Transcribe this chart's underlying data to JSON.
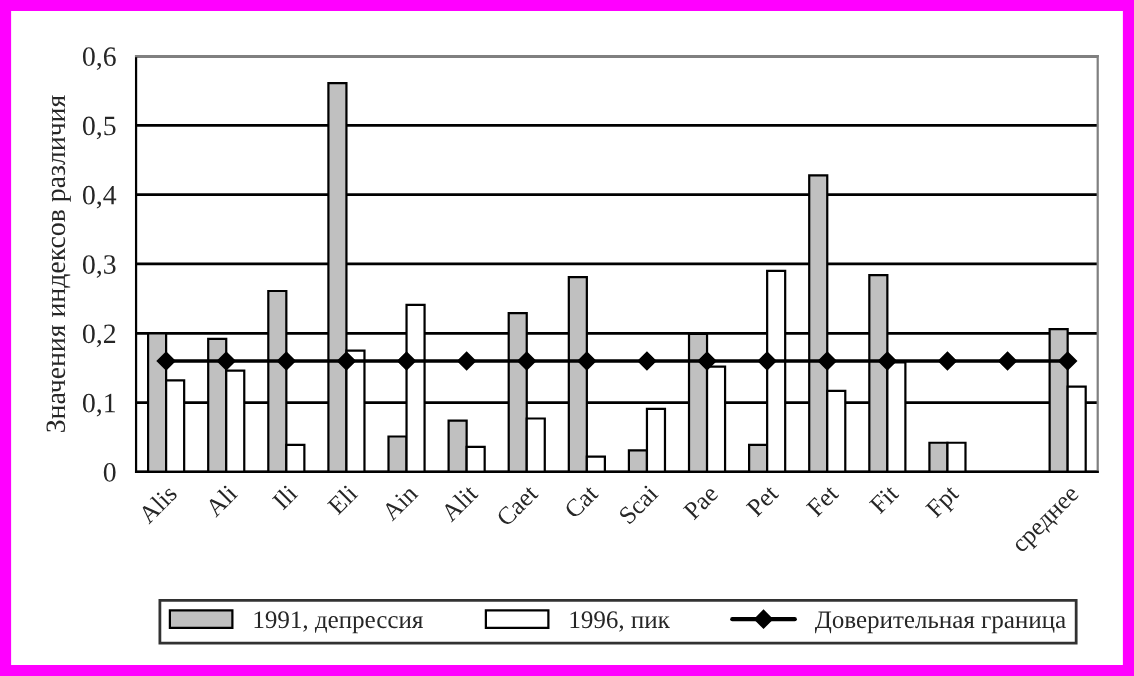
{
  "chart_data": {
    "type": "bar",
    "ylabel": "Значения индексов различия",
    "categories": [
      "Alis",
      "Ali",
      "Ili",
      "Eli",
      "Ain",
      "Alit",
      "Caet",
      "Cat",
      "Scai",
      "Pae",
      "Pet",
      "Fet",
      "Fit",
      "Fpt",
      null,
      "среднее"
    ],
    "series": [
      {
        "name": "1991, депрессия",
        "color": "#c0c0c0",
        "values": [
          0.2,
          0.192,
          0.261,
          0.561,
          0.051,
          0.074,
          0.229,
          0.281,
          0.031,
          0.199,
          0.039,
          0.428,
          0.284,
          0.042,
          null,
          0.206
        ]
      },
      {
        "name": "1996, пик",
        "color": "#ffffff",
        "values": [
          0.132,
          0.146,
          0.039,
          0.175,
          0.241,
          0.036,
          0.077,
          0.022,
          0.091,
          0.152,
          0.29,
          0.117,
          0.158,
          0.042,
          null,
          0.123
        ]
      },
      {
        "name": "Доверительная граница",
        "type": "line",
        "color": "#000000",
        "marker": "diamond",
        "values": [
          0.16,
          0.16,
          0.16,
          0.16,
          0.16,
          0.16,
          0.16,
          0.16,
          0.16,
          0.16,
          0.16,
          0.16,
          0.16,
          0.16,
          0.16,
          0.16
        ]
      }
    ],
    "ylim": [
      0,
      0.6
    ],
    "yticks": [
      0,
      {
        "value": 0.1,
        "label": "0,1"
      },
      {
        "value": 0.2,
        "label": "0,2"
      },
      {
        "value": 0.3,
        "label": "0,3"
      },
      {
        "value": 0.4,
        "label": "0,4"
      },
      {
        "value": 0.5,
        "label": "0,5"
      },
      {
        "value": 0.6,
        "label": "0,6"
      }
    ],
    "grid": "y",
    "legend": "bottom"
  }
}
